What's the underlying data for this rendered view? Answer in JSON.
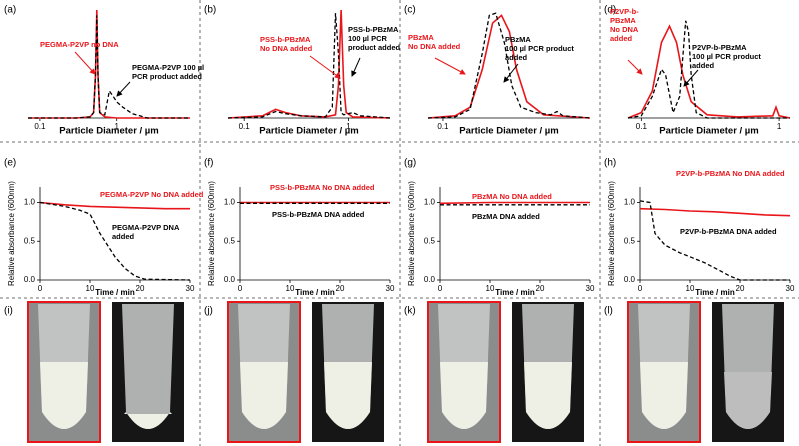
{
  "chart_data": [
    {
      "type": "line",
      "panel_label": "(a)",
      "x_label": "Particle Diameter / µm",
      "log_x": true,
      "xlim": [
        0.07,
        9
      ],
      "xticks": [
        0.1,
        1
      ],
      "ylim": [
        0,
        100
      ],
      "series": [
        {
          "color": "#e8161b",
          "dash": false,
          "x": [
            0.07,
            0.3,
            0.45,
            0.5,
            0.53,
            0.55,
            0.57,
            0.6,
            0.7,
            1,
            9
          ],
          "values": [
            0,
            0,
            1,
            5,
            40,
            100,
            40,
            5,
            1,
            0,
            0
          ]
        },
        {
          "color": "#000000",
          "dash": true,
          "x": [
            0.07,
            0.3,
            0.45,
            0.5,
            0.53,
            0.55,
            0.57,
            0.6,
            0.7,
            0.8,
            0.9,
            1.0,
            1.2,
            1.6,
            2.5,
            9
          ],
          "values": [
            0,
            0,
            1,
            5,
            40,
            95,
            40,
            5,
            3,
            25,
            20,
            15,
            10,
            4,
            0,
            0
          ]
        }
      ],
      "annotations": [
        {
          "text": [
            "PEGMA-P2VP no DNA"
          ],
          "color": "#e8161b"
        },
        {
          "text": [
            "PEGMA-P2VP 100 µl",
            "PCR product added"
          ],
          "color": "#000000"
        }
      ]
    },
    {
      "type": "line",
      "panel_label": "(b)",
      "x_label": "Particle Diameter / µm",
      "log_x": true,
      "xlim": [
        0.07,
        2.5
      ],
      "xticks": [
        0.1,
        1
      ],
      "ylim": [
        0,
        100
      ],
      "series": [
        {
          "color": "#e8161b",
          "dash": false,
          "x": [
            0.07,
            0.15,
            0.2,
            0.25,
            0.35,
            0.6,
            0.75,
            0.8,
            0.85,
            0.9,
            0.95,
            1.1,
            2.5
          ],
          "values": [
            0,
            2,
            8,
            5,
            2,
            1,
            3,
            30,
            100,
            30,
            5,
            1,
            0
          ]
        },
        {
          "color": "#000000",
          "dash": true,
          "x": [
            0.07,
            0.15,
            0.2,
            0.25,
            0.35,
            0.6,
            0.7,
            0.75,
            0.8,
            0.85,
            0.9,
            1.1,
            1.3,
            2.5
          ],
          "values": [
            0,
            1,
            6,
            4,
            2,
            1,
            10,
            97,
            60,
            5,
            3,
            5,
            2,
            0
          ]
        }
      ],
      "annotations": [
        {
          "text": [
            "PSS-b-PBzMA",
            "No DNA added"
          ],
          "color": "#e8161b"
        },
        {
          "text": [
            "PSS-b-PBzMA",
            "100 µl PCR",
            "product added"
          ],
          "color": "#000000"
        }
      ]
    },
    {
      "type": "line",
      "panel_label": "(c)",
      "x_label": "Particle Diameter / µm",
      "log_x": true,
      "xlim": [
        0.08,
        0.9
      ],
      "xticks": [
        0.1
      ],
      "ylim": [
        0,
        100
      ],
      "series": [
        {
          "color": "#e8161b",
          "dash": false,
          "x": [
            0.08,
            0.12,
            0.15,
            0.18,
            0.21,
            0.24,
            0.27,
            0.3,
            0.35,
            0.45,
            0.9
          ],
          "values": [
            0,
            2,
            10,
            45,
            88,
            95,
            80,
            45,
            15,
            3,
            0
          ]
        },
        {
          "color": "#000000",
          "dash": true,
          "x": [
            0.08,
            0.12,
            0.15,
            0.18,
            0.2,
            0.22,
            0.25,
            0.28,
            0.32,
            0.4,
            0.5,
            0.55,
            0.6,
            0.9
          ],
          "values": [
            0,
            1,
            8,
            60,
            95,
            97,
            70,
            30,
            10,
            5,
            3,
            6,
            2,
            0
          ]
        }
      ],
      "annotations": [
        {
          "text": [
            "PBzMA",
            "No DNA added"
          ],
          "color": "#e8161b"
        },
        {
          "text": [
            "PBzMA",
            "100 µl PCR product",
            "added"
          ],
          "color": "#000000"
        }
      ]
    },
    {
      "type": "line",
      "panel_label": "(d)",
      "x_label": "Particle Diameter / µm",
      "log_x": true,
      "xlim": [
        0.08,
        1.2
      ],
      "xticks": [
        0.1,
        1
      ],
      "ylim": [
        0,
        100
      ],
      "series": [
        {
          "color": "#e8161b",
          "dash": false,
          "x": [
            0.08,
            0.1,
            0.12,
            0.14,
            0.16,
            0.18,
            0.2,
            0.23,
            0.3,
            0.5,
            0.9,
            0.95,
            1.0,
            1.2
          ],
          "values": [
            0,
            5,
            25,
            70,
            85,
            70,
            40,
            15,
            3,
            1,
            2,
            10,
            2,
            0
          ]
        },
        {
          "color": "#000000",
          "dash": true,
          "x": [
            0.08,
            0.1,
            0.12,
            0.14,
            0.15,
            0.17,
            0.19,
            0.21,
            0.22,
            0.23,
            0.25,
            0.3,
            1.2
          ],
          "values": [
            0,
            2,
            20,
            45,
            40,
            5,
            20,
            90,
            80,
            40,
            5,
            0,
            0
          ]
        }
      ],
      "annotations": [
        {
          "text": [
            "P2VP-b-",
            "PBzMA",
            "No DNA",
            "added"
          ],
          "color": "#e8161b"
        },
        {
          "text": [
            "P2VP-b-PBzMA",
            "100 µl PCR product",
            "added"
          ],
          "color": "#000000"
        }
      ]
    },
    {
      "type": "line",
      "panel_label": "(e)",
      "x_label": "Time / min",
      "y_label": "Relative absorbance (600nm)",
      "log_x": false,
      "xlim": [
        0,
        30
      ],
      "xticks": [
        0,
        10,
        20,
        30
      ],
      "ylim": [
        0,
        1.2
      ],
      "yticks": [
        {
          "value": 0,
          "label": "0.0"
        },
        {
          "value": 0.5,
          "label": "0.5"
        },
        {
          "value": 1,
          "label": "1.0"
        }
      ],
      "series": [
        {
          "color": "#e8161b",
          "dash": false,
          "x": [
            0,
            5,
            10,
            15,
            20,
            25,
            30
          ],
          "values": [
            1.0,
            0.97,
            0.95,
            0.94,
            0.93,
            0.92,
            0.92
          ]
        },
        {
          "color": "#000000",
          "dash": true,
          "x": [
            0,
            5,
            8,
            10,
            12,
            13,
            15,
            17,
            19,
            21,
            30
          ],
          "values": [
            1.0,
            0.95,
            0.9,
            0.85,
            0.6,
            0.5,
            0.3,
            0.15,
            0.05,
            0.01,
            0
          ]
        }
      ],
      "annotations": [
        {
          "text": [
            "PEGMA-P2VP No DNA added"
          ],
          "color": "#e8161b"
        },
        {
          "text": [
            "PEGMA-P2VP DNA",
            "added"
          ],
          "color": "#000000"
        }
      ]
    },
    {
      "type": "line",
      "panel_label": "(f)",
      "x_label": "Time / min",
      "y_label": "Relative absorbance (600nm)",
      "log_x": false,
      "xlim": [
        0,
        30
      ],
      "xticks": [
        0,
        10,
        20,
        30
      ],
      "ylim": [
        0,
        1.2
      ],
      "yticks": [
        {
          "value": 0,
          "label": "0.0"
        },
        {
          "value": 0.5,
          "label": "0.5"
        },
        {
          "value": 1,
          "label": "1.0"
        }
      ],
      "series": [
        {
          "color": "#e8161b",
          "dash": false,
          "x": [
            0,
            10,
            20,
            30
          ],
          "values": [
            1.0,
            1.0,
            1.0,
            1.0
          ]
        },
        {
          "color": "#000000",
          "dash": true,
          "x": [
            0,
            10,
            20,
            30
          ],
          "values": [
            0.99,
            0.99,
            0.99,
            0.99
          ]
        }
      ],
      "annotations": [
        {
          "text": [
            "PSS-b-PBzMA No DNA added"
          ],
          "color": "#e8161b"
        },
        {
          "text": [
            "PSS-b-PBzMA DNA added"
          ],
          "color": "#000000"
        }
      ]
    },
    {
      "type": "line",
      "panel_label": "(g)",
      "x_label": "Time / min",
      "y_label": "Relative absorbance (600nm)",
      "log_x": false,
      "xlim": [
        0,
        30
      ],
      "xticks": [
        0,
        10,
        20,
        30
      ],
      "ylim": [
        0,
        1.2
      ],
      "yticks": [
        {
          "value": 0,
          "label": "0.0"
        },
        {
          "value": 0.5,
          "label": "0.5"
        },
        {
          "value": 1,
          "label": "1.0"
        }
      ],
      "series": [
        {
          "color": "#e8161b",
          "dash": false,
          "x": [
            0,
            10,
            20,
            30
          ],
          "values": [
            0.99,
            1.0,
            1.0,
            1.0
          ]
        },
        {
          "color": "#000000",
          "dash": true,
          "x": [
            0,
            10,
            20,
            30
          ],
          "values": [
            0.97,
            0.97,
            0.97,
            0.97
          ]
        }
      ],
      "annotations": [
        {
          "text": [
            "PBzMA No DNA added"
          ],
          "color": "#e8161b"
        },
        {
          "text": [
            "PBzMA  DNA added"
          ],
          "color": "#000000"
        }
      ]
    },
    {
      "type": "line",
      "panel_label": "(h)",
      "x_label": "Time / min",
      "y_label": "Relative absorbance (600nm)",
      "log_x": false,
      "xlim": [
        0,
        30
      ],
      "xticks": [
        0,
        10,
        20,
        30
      ],
      "ylim": [
        0,
        1.2
      ],
      "yticks": [
        {
          "value": 0,
          "label": "0.0"
        },
        {
          "value": 0.5,
          "label": "0.5"
        },
        {
          "value": 1,
          "label": "1.0"
        }
      ],
      "series": [
        {
          "color": "#e8161b",
          "dash": false,
          "x": [
            0,
            5,
            10,
            15,
            20,
            25,
            30
          ],
          "values": [
            0.92,
            0.91,
            0.89,
            0.88,
            0.86,
            0.84,
            0.83
          ]
        },
        {
          "color": "#000000",
          "dash": true,
          "x": [
            0,
            2,
            3,
            5,
            8,
            10,
            13,
            16,
            18,
            20,
            30
          ],
          "values": [
            1.02,
            1.0,
            0.6,
            0.45,
            0.35,
            0.3,
            0.22,
            0.12,
            0.05,
            0,
            0
          ]
        }
      ],
      "annotations": [
        {
          "text": [
            "P2VP-b-PBzMA No DNA added"
          ],
          "color": "#e8161b"
        },
        {
          "text": [
            "P2VP-b-PBzMA DNA added"
          ],
          "color": "#000000"
        }
      ]
    }
  ],
  "photo_panels": [
    {
      "label": "(i)"
    },
    {
      "label": "(j)"
    },
    {
      "label": "(k)"
    },
    {
      "label": "(l)"
    }
  ]
}
